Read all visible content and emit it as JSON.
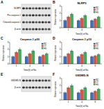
{
  "chart_data": [
    {
      "type": "bar",
      "panel": "B",
      "title": "NLRP3",
      "x_label": "Time(h) of Na",
      "y_label": "Relative expression",
      "categories": [
        "1",
        "4",
        "8"
      ],
      "series": [
        {
          "name": "NC",
          "color": "#3b6fc4",
          "values": [
            1.0,
            1.0,
            1.0
          ],
          "errors": [
            0.1,
            0.1,
            0.1
          ]
        },
        {
          "name": "LD",
          "color": "#e0533f",
          "values": [
            1.5,
            1.3,
            1.2
          ],
          "errors": [
            0.15,
            0.12,
            0.1
          ]
        },
        {
          "name": "HD",
          "color": "#3fae5a",
          "values": [
            1.9,
            1.7,
            1.5
          ],
          "errors": [
            0.15,
            0.14,
            0.12
          ]
        }
      ],
      "ylim": [
        0,
        3
      ],
      "yticks": [
        0,
        1,
        2,
        3
      ],
      "legend": "upper right"
    },
    {
      "type": "bar",
      "panel": "C",
      "title": "Caspase-1 p20",
      "x_label": "Time(h) of Na",
      "y_label": "Relative expression",
      "categories": [
        "1",
        "4",
        "8"
      ],
      "series": [
        {
          "name": "NC",
          "color": "#3b6fc4",
          "values": [
            1.0,
            1.0,
            1.0
          ],
          "errors": [
            0.1,
            0.1,
            0.1
          ]
        },
        {
          "name": "LD",
          "color": "#e0533f",
          "values": [
            1.6,
            1.4,
            1.2
          ],
          "errors": [
            0.15,
            0.12,
            0.1
          ]
        },
        {
          "name": "HD",
          "color": "#3fae5a",
          "values": [
            2.0,
            1.8,
            1.4
          ],
          "errors": [
            0.18,
            0.15,
            0.12
          ]
        }
      ],
      "ylim": [
        0,
        3
      ],
      "yticks": [
        0,
        1,
        2,
        3
      ],
      "legend": "upper right"
    },
    {
      "type": "bar",
      "panel": "D",
      "title": "Caspase-1 p10",
      "x_label": "Time(h) of Na",
      "y_label": "Relative expression",
      "categories": [
        "1",
        "4",
        "8"
      ],
      "series": [
        {
          "name": "NC",
          "color": "#3b6fc4",
          "values": [
            1.0,
            1.0,
            1.0
          ],
          "errors": [
            0.1,
            0.1,
            0.1
          ]
        },
        {
          "name": "LD",
          "color": "#e0533f",
          "values": [
            1.4,
            1.3,
            1.1
          ],
          "errors": [
            0.12,
            0.12,
            0.1
          ]
        },
        {
          "name": "HD",
          "color": "#3fae5a",
          "values": [
            1.8,
            1.6,
            1.3
          ],
          "errors": [
            0.15,
            0.14,
            0.12
          ]
        }
      ],
      "ylim": [
        0,
        3
      ],
      "yticks": [
        0,
        1,
        2,
        3
      ],
      "legend": "upper right"
    },
    {
      "type": "bar",
      "panel": "F",
      "title": "GSDMD-N",
      "x_label": "Time(h) of Na",
      "y_label": "Relative expression",
      "categories": [
        "1",
        "4",
        "8"
      ],
      "series": [
        {
          "name": "NC",
          "color": "#3b6fc4",
          "values": [
            1.0,
            1.0,
            1.0
          ],
          "errors": [
            0.1,
            0.1,
            0.1
          ]
        },
        {
          "name": "LD",
          "color": "#e0533f",
          "values": [
            1.7,
            1.4,
            1.2
          ],
          "errors": [
            0.15,
            0.12,
            0.1
          ]
        },
        {
          "name": "HD",
          "color": "#3fae5a",
          "values": [
            2.0,
            1.7,
            1.5
          ],
          "errors": [
            0.18,
            0.15,
            0.12
          ]
        }
      ],
      "ylim": [
        0,
        3
      ],
      "yticks": [
        0,
        1,
        2,
        3
      ],
      "legend": "upper right"
    }
  ],
  "blots": [
    {
      "panel": "A",
      "rows": [
        "NLRP3",
        "Pro-caspase-1",
        "Cleaved caspase-1",
        "β-actin"
      ]
    },
    {
      "panel": "E",
      "rows": [
        "GSDMD-N",
        "β-actin"
      ]
    }
  ]
}
